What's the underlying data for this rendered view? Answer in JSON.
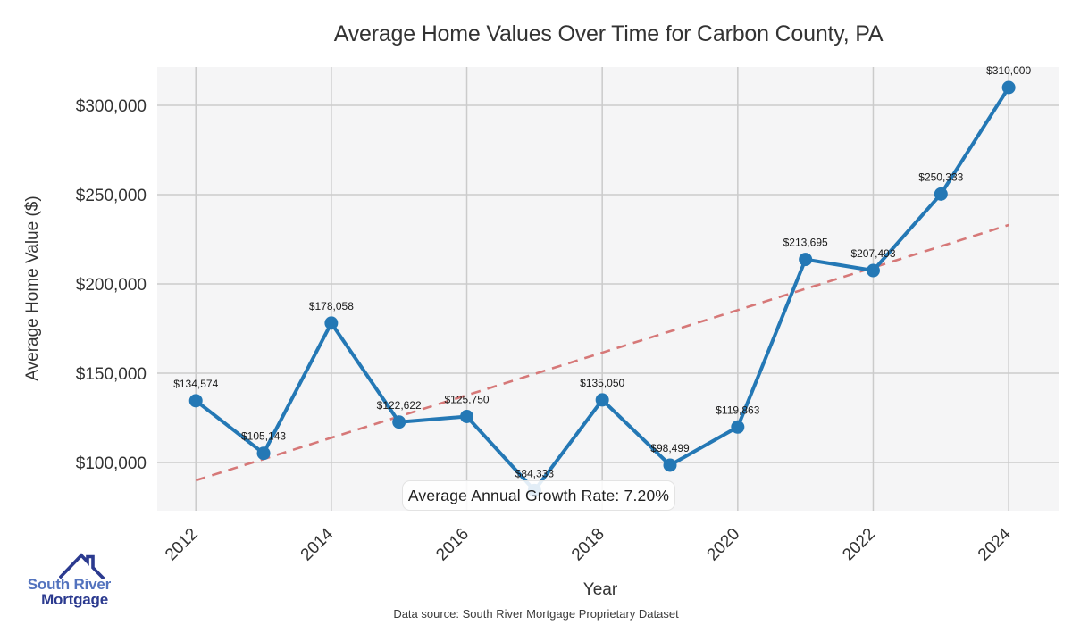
{
  "chart_data": {
    "type": "line",
    "title": "Average Home Values Over Time for Carbon County, PA",
    "xlabel": "Year",
    "ylabel": "Average Home Value ($)",
    "x": [
      2012,
      2013,
      2014,
      2015,
      2016,
      2017,
      2018,
      2019,
      2020,
      2021,
      2022,
      2023,
      2024
    ],
    "values": [
      134574,
      105143,
      178058,
      122622,
      125750,
      84333,
      135050,
      98499,
      119863,
      213695,
      207493,
      250333,
      310000
    ],
    "point_labels": [
      "$134,574",
      "$105,143",
      "$178,058",
      "$122,622",
      "$125,750",
      "$84,333",
      "$135,050",
      "$98,499",
      "$119,863",
      "$213,695",
      "$207,493",
      "$250,333",
      "$310,000"
    ],
    "xticks": [
      2012,
      2014,
      2016,
      2018,
      2020,
      2022,
      2024
    ],
    "yticks": [
      100000,
      150000,
      200000,
      250000,
      300000
    ],
    "ytick_labels": [
      "$100,000",
      "$150,000",
      "$200,000",
      "$250,000",
      "$300,000"
    ],
    "xlim": [
      2011.43,
      2024.75
    ],
    "ylim": [
      73000,
      321500
    ],
    "grid": true,
    "legend": "none",
    "trend_line": {
      "style": "dashed",
      "x": [
        2012,
        2024
      ],
      "values": [
        90000,
        233000
      ]
    },
    "annotation": "Average Annual Growth Rate: 7.20%"
  },
  "footer": {
    "source_text": "Data source: South River Mortgage Proprietary Dataset"
  },
  "logo": {
    "name_line1": "South River",
    "name_line2": "Mortgage"
  },
  "colors": {
    "series_line": "#2478b5",
    "trend_line": "#d67878",
    "plot_background": "#f5f5f6",
    "gridline": "#cbcbcb",
    "axis_text": "#333333",
    "point_label_text": "#1a1a1a",
    "logo_primary": "#5373be",
    "logo_secondary": "#2b3a8f"
  }
}
